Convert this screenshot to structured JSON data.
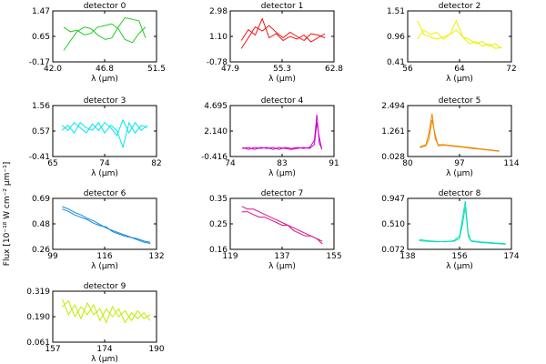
{
  "figure": {
    "ylabel": "Flux [10⁻¹⁸ W cm⁻² μm⁻¹]"
  },
  "chart_data": [
    {
      "type": "line",
      "title": "detector 0",
      "xlabel": "λ (μm)",
      "xlim": [
        42.0,
        51.5
      ],
      "ylim": [
        -0.17,
        1.47
      ],
      "xticks": [
        "42.0",
        "46.8",
        "51.5"
      ],
      "yticks": [
        "-0.17",
        "0.65",
        "1.47"
      ],
      "color": "#22cc22",
      "series": [
        {
          "x": [
            43.0,
            43.6,
            44.2,
            44.9,
            45.5,
            46.1,
            46.8,
            47.4,
            48.0,
            48.6,
            49.3,
            49.9,
            50.5
          ],
          "y": [
            0.95,
            0.8,
            0.85,
            0.7,
            0.75,
            0.95,
            1.0,
            1.05,
            0.9,
            0.55,
            0.45,
            0.75,
            0.95
          ]
        },
        {
          "x": [
            43.0,
            43.6,
            44.2,
            44.9,
            45.5,
            46.1,
            46.8,
            47.4,
            48.0,
            48.6,
            49.3,
            49.9,
            50.5
          ],
          "y": [
            0.2,
            0.5,
            0.8,
            0.95,
            0.9,
            0.7,
            0.55,
            0.6,
            0.95,
            1.25,
            1.2,
            1.15,
            0.6
          ]
        }
      ]
    },
    {
      "type": "line",
      "title": "detector 1",
      "xlabel": "λ (μm)",
      "xlim": [
        47.9,
        62.8
      ],
      "ylim": [
        -0.78,
        2.98
      ],
      "xticks": [
        "47.9",
        "55.3",
        "62.8"
      ],
      "yticks": [
        "-0.78",
        "1.10",
        "2.98"
      ],
      "color": "#ee1111",
      "series": [
        {
          "x": [
            49.5,
            50.5,
            51.5,
            52.5,
            53.5,
            54.5,
            55.5,
            56.5,
            57.5,
            58.5,
            59.5,
            60.5,
            61.5
          ],
          "y": [
            0.8,
            1.6,
            1.2,
            2.4,
            1.0,
            1.3,
            0.8,
            1.1,
            0.9,
            1.2,
            0.7,
            1.0,
            1.3
          ]
        },
        {
          "x": [
            49.5,
            50.5,
            51.5,
            52.5,
            53.5,
            54.5,
            55.5,
            56.5,
            57.5,
            58.5,
            59.5,
            60.5,
            61.5
          ],
          "y": [
            0.2,
            1.0,
            1.8,
            1.5,
            1.9,
            1.4,
            1.0,
            1.4,
            1.1,
            0.8,
            1.3,
            1.2,
            1.0
          ]
        }
      ]
    },
    {
      "type": "line",
      "title": "detector 2",
      "xlabel": "λ (μm)",
      "xlim": [
        56,
        72
      ],
      "ylim": [
        0.41,
        1.51
      ],
      "xticks": [
        "56",
        "64",
        "72"
      ],
      "yticks": [
        "0.41",
        "0.96",
        "1.51"
      ],
      "color": "#eeee00",
      "series": [
        {
          "x": [
            57.5,
            58.5,
            59.5,
            60.5,
            61.5,
            62.5,
            63.5,
            64.5,
            65.5,
            66.5,
            67.5,
            68.5,
            69.5,
            70.5
          ],
          "y": [
            1.3,
            1.0,
            0.95,
            0.9,
            0.95,
            1.0,
            1.3,
            0.95,
            0.9,
            0.8,
            0.85,
            0.75,
            0.8,
            0.7
          ]
        },
        {
          "x": [
            57.5,
            58.5,
            59.5,
            60.5,
            61.5,
            62.5,
            63.5,
            64.5,
            65.5,
            66.5,
            67.5,
            68.5,
            69.5,
            70.5
          ],
          "y": [
            0.9,
            1.1,
            1.0,
            1.05,
            0.9,
            1.0,
            1.1,
            0.95,
            0.8,
            0.85,
            0.75,
            0.8,
            0.7,
            0.72
          ]
        }
      ]
    },
    {
      "type": "line",
      "title": "detector 3",
      "xlabel": "λ (μm)",
      "xlim": [
        65,
        82
      ],
      "ylim": [
        -0.41,
        1.56
      ],
      "xticks": [
        "65",
        "74",
        "82"
      ],
      "yticks": [
        "-0.41",
        "0.57",
        "1.56"
      ],
      "color": "#00e5ee",
      "series": [
        {
          "x": [
            66.5,
            67.5,
            68.5,
            69.5,
            70.5,
            71.5,
            72.5,
            73.5,
            74.5,
            75.5,
            76.5,
            77.5,
            78.5,
            79.5,
            80.5
          ],
          "y": [
            0.8,
            0.6,
            0.9,
            0.7,
            0.5,
            0.85,
            0.6,
            0.9,
            0.7,
            0.4,
            1.0,
            0.5,
            0.9,
            0.6,
            0.8
          ]
        },
        {
          "x": [
            66.5,
            67.5,
            68.5,
            69.5,
            70.5,
            71.5,
            72.5,
            73.5,
            74.5,
            75.5,
            76.5,
            77.5,
            78.5,
            79.5,
            80.5
          ],
          "y": [
            0.6,
            0.8,
            0.5,
            0.9,
            0.7,
            0.6,
            0.9,
            0.5,
            0.8,
            0.6,
            -0.05,
            0.9,
            0.5,
            0.8,
            0.7
          ]
        }
      ]
    },
    {
      "type": "line",
      "title": "detector 4",
      "xlabel": "λ (μm)",
      "xlim": [
        74,
        91
      ],
      "ylim": [
        -0.416,
        4.695
      ],
      "xticks": [
        "74",
        "83",
        "91"
      ],
      "yticks": [
        "-0.416",
        "2.140",
        "4.695"
      ],
      "color": "#cc00cc",
      "series": [
        {
          "x": [
            76.0,
            77.0,
            78.0,
            79.0,
            80.0,
            81.0,
            82.0,
            83.0,
            84.0,
            85.0,
            86.0,
            87.0,
            87.8,
            88.2,
            88.6,
            89.0
          ],
          "y": [
            0.4,
            0.5,
            0.3,
            0.5,
            0.4,
            0.5,
            0.3,
            0.5,
            0.4,
            0.5,
            0.4,
            0.5,
            1.2,
            3.8,
            0.9,
            0.4
          ]
        },
        {
          "x": [
            76.0,
            77.0,
            78.0,
            79.0,
            80.0,
            81.0,
            82.0,
            83.0,
            84.0,
            85.0,
            86.0,
            87.0,
            87.8,
            88.2,
            88.6,
            89.0
          ],
          "y": [
            0.5,
            0.3,
            0.5,
            0.4,
            0.5,
            0.3,
            0.5,
            0.4,
            0.3,
            0.4,
            0.5,
            0.4,
            0.8,
            3.0,
            1.5,
            0.3
          ]
        }
      ]
    },
    {
      "type": "line",
      "title": "detector 5",
      "xlabel": "λ (μm)",
      "xlim": [
        80,
        114
      ],
      "ylim": [
        0.028,
        2.494
      ],
      "xticks": [
        "80",
        "97",
        "114"
      ],
      "yticks": [
        "0.028",
        "1.261",
        "2.494"
      ],
      "color": "#ee8800",
      "series": [
        {
          "x": [
            84,
            86,
            87,
            88,
            89,
            90,
            92,
            95,
            98,
            101,
            104,
            107,
            110
          ],
          "y": [
            0.5,
            0.6,
            1.2,
            2.1,
            0.9,
            0.6,
            0.6,
            0.55,
            0.5,
            0.45,
            0.4,
            0.35,
            0.3
          ]
        },
        {
          "x": [
            84,
            86,
            87,
            88,
            89,
            90,
            92,
            95,
            98,
            101,
            104,
            107,
            110
          ],
          "y": [
            0.45,
            0.55,
            0.9,
            1.8,
            1.1,
            0.55,
            0.58,
            0.52,
            0.48,
            0.42,
            0.38,
            0.33,
            0.28
          ]
        }
      ]
    },
    {
      "type": "line",
      "title": "detector 6",
      "xlabel": "λ (μm)",
      "xlim": [
        99,
        132
      ],
      "ylim": [
        0.26,
        0.69
      ],
      "xticks": [
        "99",
        "116",
        "132"
      ],
      "yticks": [
        "0.26",
        "0.48",
        "0.69"
      ],
      "color": "#1188dd",
      "series": [
        {
          "x": [
            102,
            104,
            106,
            108,
            110,
            112,
            114,
            116,
            118,
            120,
            122,
            124,
            126,
            128,
            130
          ],
          "y": [
            0.62,
            0.6,
            0.57,
            0.55,
            0.52,
            0.5,
            0.47,
            0.44,
            0.42,
            0.4,
            0.38,
            0.36,
            0.35,
            0.33,
            0.32
          ]
        },
        {
          "x": [
            102,
            104,
            106,
            108,
            110,
            112,
            114,
            116,
            118,
            120,
            122,
            124,
            126,
            128,
            130
          ],
          "y": [
            0.6,
            0.58,
            0.55,
            0.53,
            0.51,
            0.48,
            0.46,
            0.45,
            0.41,
            0.39,
            0.37,
            0.36,
            0.34,
            0.32,
            0.31
          ]
        }
      ]
    },
    {
      "type": "line",
      "title": "detector 7",
      "xlabel": "λ (μm)",
      "xlim": [
        119,
        155
      ],
      "ylim": [
        0.16,
        0.35
      ],
      "xticks": [
        "119",
        "137",
        "155"
      ],
      "yticks": [
        "0.16",
        "0.25",
        "0.35"
      ],
      "color": "#dd1188",
      "series": [
        {
          "x": [
            123,
            125,
            127,
            129,
            131,
            133,
            135,
            137,
            139,
            141,
            143,
            145,
            147,
            149,
            151
          ],
          "y": [
            0.32,
            0.31,
            0.31,
            0.3,
            0.29,
            0.28,
            0.27,
            0.26,
            0.25,
            0.24,
            0.23,
            0.22,
            0.21,
            0.2,
            0.19
          ]
        },
        {
          "x": [
            123,
            125,
            127,
            129,
            131,
            133,
            135,
            137,
            139,
            141,
            143,
            145,
            147,
            149,
            151
          ],
          "y": [
            0.3,
            0.3,
            0.29,
            0.28,
            0.28,
            0.27,
            0.26,
            0.25,
            0.25,
            0.23,
            0.22,
            0.21,
            0.21,
            0.2,
            0.18
          ]
        }
      ]
    },
    {
      "type": "line",
      "title": "detector 8",
      "xlabel": "λ (μm)",
      "xlim": [
        138,
        174
      ],
      "ylim": [
        0.072,
        0.947
      ],
      "xticks": [
        "138",
        "156",
        "174"
      ],
      "yticks": [
        "0.072",
        "0.510",
        "0.947"
      ],
      "color": "#11ddbb",
      "series": [
        {
          "x": [
            142,
            145,
            148,
            151,
            154,
            156,
            157,
            158,
            159,
            160,
            163,
            166,
            169,
            172
          ],
          "y": [
            0.24,
            0.22,
            0.21,
            0.2,
            0.22,
            0.3,
            0.6,
            0.9,
            0.35,
            0.22,
            0.2,
            0.19,
            0.18,
            0.17
          ]
        },
        {
          "x": [
            142,
            145,
            148,
            151,
            154,
            156,
            157,
            158,
            159,
            160,
            163,
            166,
            169,
            172
          ],
          "y": [
            0.22,
            0.21,
            0.2,
            0.21,
            0.21,
            0.26,
            0.5,
            0.8,
            0.3,
            0.21,
            0.19,
            0.18,
            0.17,
            0.16
          ]
        }
      ]
    },
    {
      "type": "line",
      "title": "detector 9",
      "xlabel": "λ (μm)",
      "xlim": [
        157,
        190
      ],
      "ylim": [
        0.061,
        0.319
      ],
      "xticks": [
        "157",
        "174",
        "190"
      ],
      "yticks": [
        "0.061",
        "0.190",
        "0.319"
      ],
      "color": "#bbee00",
      "series": [
        {
          "x": [
            160,
            162,
            164,
            166,
            168,
            170,
            172,
            174,
            176,
            178,
            180,
            182,
            184,
            186,
            188
          ],
          "y": [
            0.28,
            0.2,
            0.25,
            0.18,
            0.26,
            0.2,
            0.23,
            0.16,
            0.24,
            0.19,
            0.22,
            0.17,
            0.22,
            0.18,
            0.2
          ]
        },
        {
          "x": [
            160,
            162,
            164,
            166,
            168,
            170,
            172,
            174,
            176,
            178,
            180,
            182,
            184,
            186,
            188
          ],
          "y": [
            0.24,
            0.27,
            0.19,
            0.24,
            0.2,
            0.25,
            0.17,
            0.23,
            0.19,
            0.23,
            0.16,
            0.21,
            0.18,
            0.21,
            0.17
          ]
        }
      ]
    }
  ]
}
